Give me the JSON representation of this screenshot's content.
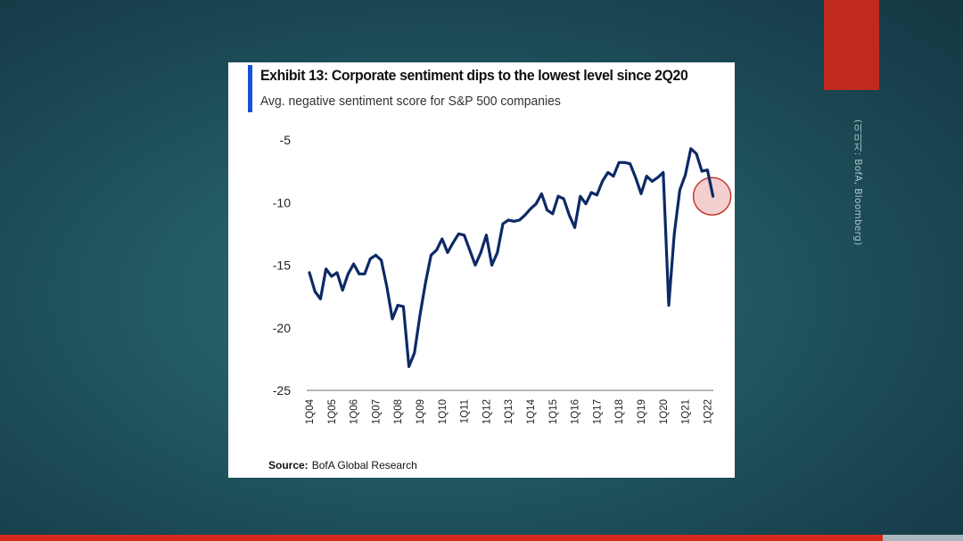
{
  "side_credit": "(이미지: BofA, Bloomberg)",
  "colors": {
    "line": "#0d2a66",
    "accent": "#1452d6",
    "highlight_fill": "#f2c7c7",
    "highlight_stroke": "#c0392b",
    "red_tab": "#bf2a1c"
  },
  "source": {
    "label": "Source:",
    "text": "BofA Global Research"
  },
  "chart_data": {
    "type": "line",
    "title": "Exhibit 13: Corporate sentiment dips to the lowest level since 2Q20",
    "subtitle": "Avg. negative sentiment score for S&P 500 companies",
    "xlabel": "",
    "ylabel": "",
    "ylim": [
      -25,
      -5
    ],
    "yticks": [
      -5,
      -10,
      -15,
      -20,
      -25
    ],
    "ytick_labels": [
      "-5",
      "-10",
      "-15",
      "-20",
      "-25"
    ],
    "xtick_labels": [
      "1Q04",
      "1Q05",
      "1Q06",
      "1Q07",
      "1Q08",
      "1Q09",
      "1Q10",
      "1Q11",
      "1Q12",
      "1Q13",
      "1Q14",
      "1Q15",
      "1Q16",
      "1Q17",
      "1Q18",
      "1Q19",
      "1Q20",
      "1Q21",
      "1Q22"
    ],
    "grid": false,
    "legend": "none",
    "highlight": {
      "type": "circle",
      "at": "2Q22",
      "value": -9.5
    },
    "x": [
      "1Q04",
      "2Q04",
      "3Q04",
      "4Q04",
      "1Q05",
      "2Q05",
      "3Q05",
      "4Q05",
      "1Q06",
      "2Q06",
      "3Q06",
      "4Q06",
      "1Q07",
      "2Q07",
      "3Q07",
      "4Q07",
      "1Q08",
      "2Q08",
      "3Q08",
      "4Q08",
      "1Q09",
      "2Q09",
      "3Q09",
      "4Q09",
      "1Q10",
      "2Q10",
      "3Q10",
      "4Q10",
      "1Q11",
      "2Q11",
      "3Q11",
      "4Q11",
      "1Q12",
      "2Q12",
      "3Q12",
      "4Q12",
      "1Q13",
      "2Q13",
      "3Q13",
      "4Q13",
      "1Q14",
      "2Q14",
      "3Q14",
      "4Q14",
      "1Q15",
      "2Q15",
      "3Q15",
      "4Q15",
      "1Q16",
      "2Q16",
      "3Q16",
      "4Q16",
      "1Q17",
      "2Q17",
      "3Q17",
      "4Q17",
      "1Q18",
      "2Q18",
      "3Q18",
      "4Q18",
      "1Q19",
      "2Q19",
      "3Q19",
      "4Q19",
      "1Q20",
      "2Q20",
      "3Q20",
      "4Q20",
      "1Q21",
      "2Q21",
      "3Q21",
      "4Q21",
      "1Q22",
      "2Q22"
    ],
    "series": [
      {
        "values": [
          -15.6,
          -17.1,
          -17.7,
          -15.3,
          -15.9,
          -15.6,
          -17.0,
          -15.7,
          -14.9,
          -15.7,
          -15.7,
          -14.5,
          -14.2,
          -14.6,
          -16.7,
          -19.3,
          -18.2,
          -18.3,
          -23.1,
          -22.0,
          -19.0,
          -16.4,
          -14.2,
          -13.8,
          -12.9,
          -14.0,
          -13.2,
          -12.5,
          -12.6,
          -13.8,
          -15.0,
          -14.0,
          -12.6,
          -15.0,
          -14.0,
          -11.7,
          -11.4,
          -11.5,
          -11.4,
          -11.0,
          -10.5,
          -10.1,
          -9.3,
          -10.6,
          -10.9,
          -9.5,
          -9.7,
          -11.0,
          -12.0,
          -9.5,
          -10.1,
          -9.2,
          -9.4,
          -8.3,
          -7.6,
          -7.9,
          -6.8,
          -6.8,
          -6.9,
          -8.0,
          -9.3,
          -7.9,
          -8.3,
          -8.0,
          -7.6,
          -18.2,
          -12.5,
          -9.0,
          -7.8,
          -5.7,
          -6.1,
          -7.5,
          -7.4,
          -9.5
        ]
      }
    ]
  }
}
